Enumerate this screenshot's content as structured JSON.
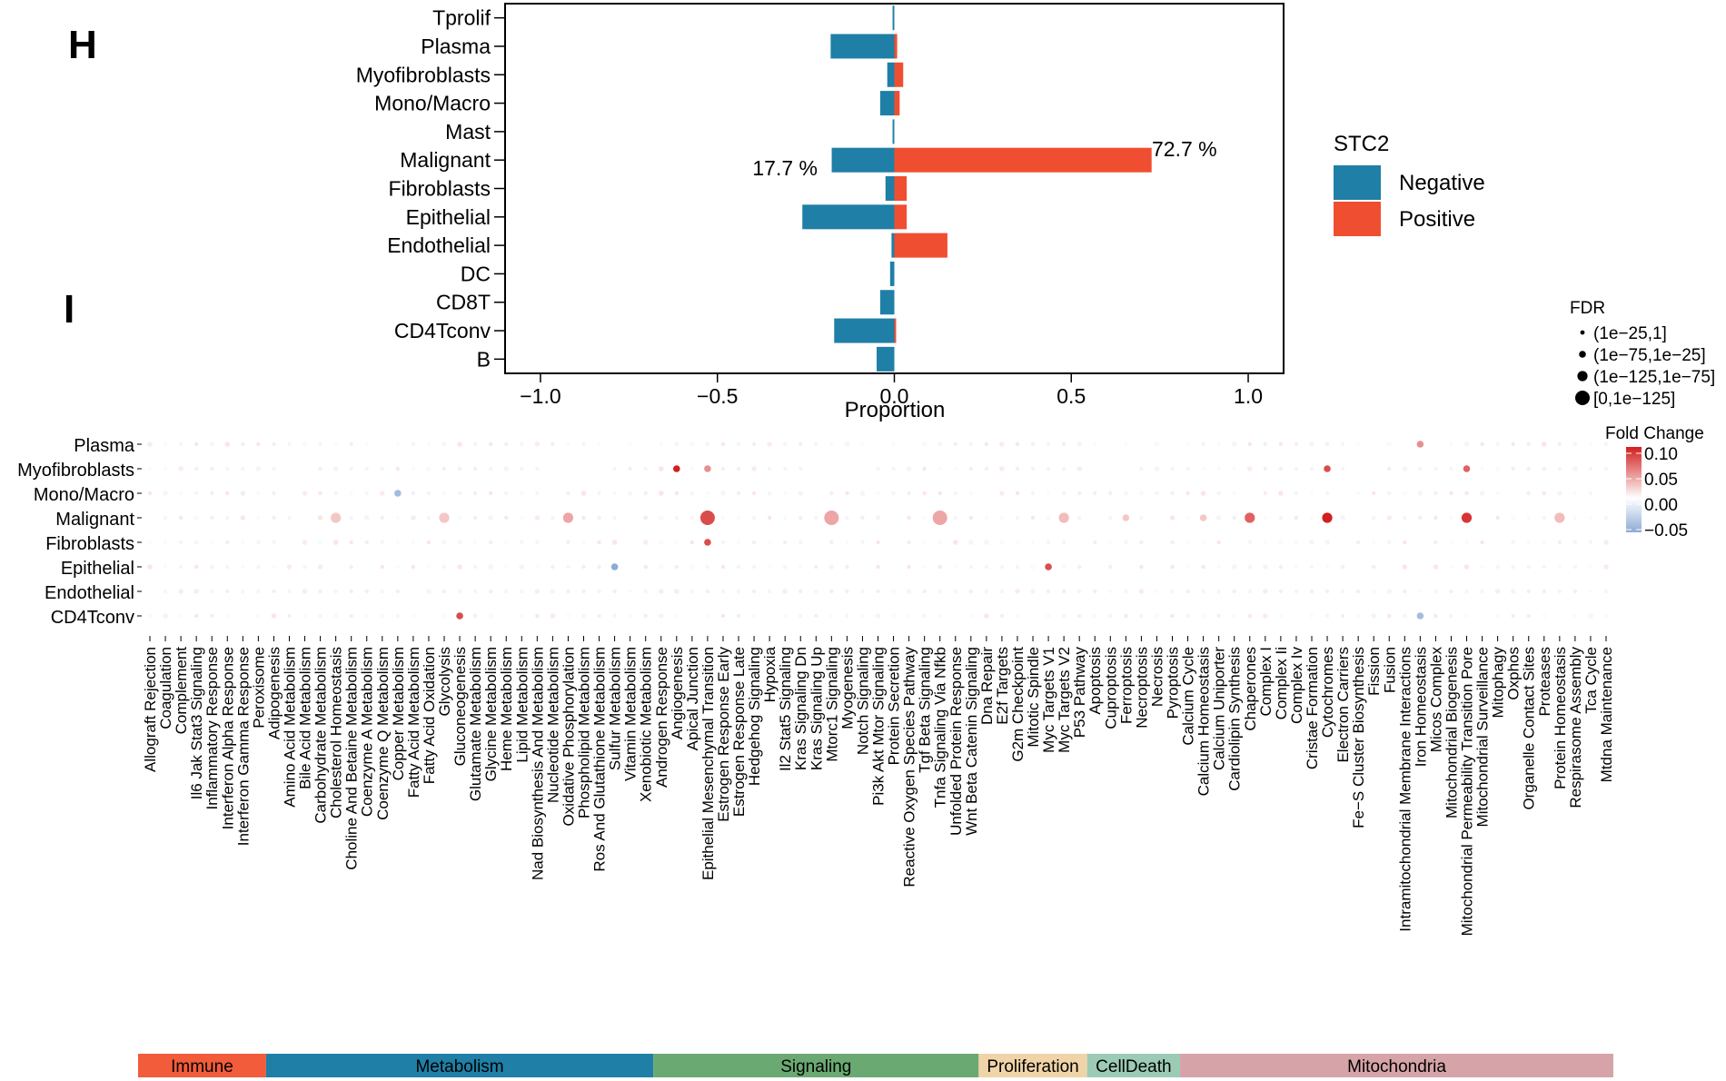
{
  "panel_labels": {
    "h": "H",
    "i": "I"
  },
  "colors": {
    "negative": "#1f7fa6",
    "positive": "#f04e30",
    "fc_high": "#d21f1f",
    "fc_low": "#8eaad6"
  },
  "chart_data": [
    {
      "type": "bar",
      "orientation": "horizontal",
      "panel": "H",
      "categories": [
        "Tprolif",
        "Plasma",
        "Myofibroblasts",
        "Mono/Macro",
        "Mast",
        "Malignant",
        "Fibroblasts",
        "Epithelial",
        "Endothelial",
        "DC",
        "CD8T",
        "CD4Tconv",
        "B"
      ],
      "series": [
        {
          "name": "Negative",
          "values": [
            -0.005,
            -0.18,
            -0.02,
            -0.04,
            -0.005,
            -0.177,
            -0.025,
            -0.26,
            -0.008,
            -0.012,
            -0.04,
            -0.17,
            -0.05
          ]
        },
        {
          "name": "Positive",
          "values": [
            0.0,
            0.008,
            0.025,
            0.015,
            0.0,
            0.727,
            0.035,
            0.035,
            0.15,
            0.0,
            0.0,
            0.005,
            0.0
          ]
        }
      ],
      "xlabel": "Proportion",
      "xlim": [
        -1.1,
        1.1
      ],
      "xticks": [
        "−1.0",
        "−0.5",
        "0.0",
        "0.5",
        "1.0"
      ],
      "annotations": [
        "17.7 %",
        "72.7 %"
      ],
      "legend": {
        "title": "STC2",
        "items": [
          "Negative",
          "Positive"
        ],
        "position": "right"
      }
    },
    {
      "type": "scatter",
      "subtype": "dot-plot",
      "panel": "I",
      "rows": [
        "Plasma",
        "Myofibroblasts",
        "Mono/Macro",
        "Malignant",
        "Fibroblasts",
        "Epithelial",
        "Endothelial",
        "CD4Tconv"
      ],
      "pathways": [
        "Allograft Rejection",
        "Coagulation",
        "Complement",
        "Il6 Jak Stat3 Signaling",
        "Inflammatory Response",
        "Interferon Alpha Response",
        "Interferon Gamma Response",
        "Peroxisome",
        "Adipogenesis",
        "Amino Acid Metabolism",
        "Bile Acid Metabolism",
        "Carbohydrate Metabolism",
        "Cholesterol Homeostasis",
        "Choline And Betaine Metabolism",
        "Coenzyme A Metabolism",
        "Coenzyme Q Metabolism",
        "Copper Metabolism",
        "Fatty Acid Metabolism",
        "Fatty Acid Oxidation",
        "Glycolysis",
        "Gluconeogenesis",
        "Glutamate Metabolism",
        "Glycine Metabolism",
        "Heme Metabolism",
        "Lipid Metabolism",
        "Nad Biosynthesis And Metabolism",
        "Nucleotide Metabolism",
        "Oxidative Phosphorylation",
        "Phospholipid Metabolism",
        "Ros And Glutathione Metabolism",
        "Sulfur Metabolism",
        "Vitamin Metabolism",
        "Xenobiotic Metabolism",
        "Androgen Response",
        "Angiogenesis",
        "Apical Junction",
        "Epithelial Mesenchymal Transition",
        "Estrogen Response Early",
        "Estrogen Response Late",
        "Hedgehog Signaling",
        "Hypoxia",
        "Il2 Stat5 Signaling",
        "Kras Signaling Dn",
        "Kras Signaling Up",
        "Mtorc1 Signaling",
        "Myogenesis",
        "Notch Signaling",
        "Pi3k Akt Mtor Signaling",
        "Protein Secretion",
        "Reactive Oxygen Species Pathway",
        "Tgf Beta Signaling",
        "Tnfa Signaling Via Nfkb",
        "Unfolded Protein Response",
        "Wnt Beta Catenin Signaling",
        "Dna Repair",
        "E2f Targets",
        "G2m Checkpoint",
        "Mitotic Spindle",
        "Myc Targets V1",
        "Myc Targets V2",
        "P53 Pathway",
        "Apoptosis",
        "Cuproptosis",
        "Ferroptosis",
        "Necroptosis",
        "Necrosis",
        "Pyroptosis",
        "Calcium Cycle",
        "Calcium Homeostasis",
        "Calcium Uniporter",
        "Cardiolipin Synthesis",
        "Chaperones",
        "Complex I",
        "Complex Ii",
        "Complex Iv",
        "Cristae Formation",
        "Cytochromes",
        "Electron Carriers",
        "Fe−S Cluster Biosynthesis",
        "Fission",
        "Fusion",
        "Intramitochondrial Membrane Interactions",
        "Iron Homeostasis",
        "Micos Complex",
        "Mitochondrial Biogenesis",
        "Mitochondrial Permeability Transition Pore",
        "Mitochondrial Surveillance",
        "Mitophagy",
        "Oxphos",
        "Organelle Contact Sites",
        "Proteases",
        "Protein Homeostasis",
        "Respirasome Assembly",
        "Tca Cycle",
        "Mtdna Maintenance"
      ],
      "highlighted_pathway": "Epithelial Mesenchymal Transition",
      "points": [
        {
          "row": "Malignant",
          "pathway": "Epithelial Mesenchymal Transition",
          "fc": 0.08,
          "size": 4
        },
        {
          "row": "Malignant",
          "pathway": "Mtorc1 Signaling",
          "fc": 0.04,
          "size": 4
        },
        {
          "row": "Malignant",
          "pathway": "Tnfa Signaling Via Nfkb",
          "fc": 0.04,
          "size": 4
        },
        {
          "row": "Malignant",
          "pathway": "Chaperones",
          "fc": 0.07,
          "size": 3
        },
        {
          "row": "Malignant",
          "pathway": "Cytochromes",
          "fc": 0.1,
          "size": 3
        },
        {
          "row": "Malignant",
          "pathway": "Mitochondrial Permeability Transition Pore",
          "fc": 0.09,
          "size": 3
        },
        {
          "row": "Malignant",
          "pathway": "Glycolysis",
          "fc": 0.025,
          "size": 3
        },
        {
          "row": "Malignant",
          "pathway": "Cholesterol Homeostasis",
          "fc": 0.025,
          "size": 3
        },
        {
          "row": "Malignant",
          "pathway": "Oxidative Phosphorylation",
          "fc": 0.04,
          "size": 3
        },
        {
          "row": "Malignant",
          "pathway": "Myc Targets V2",
          "fc": 0.03,
          "size": 3
        },
        {
          "row": "Malignant",
          "pathway": "Protein Homeostasis",
          "fc": 0.03,
          "size": 3
        },
        {
          "row": "Malignant",
          "pathway": "Calcium Homeostasis",
          "fc": 0.025,
          "size": 2
        },
        {
          "row": "Malignant",
          "pathway": "Ferroptosis",
          "fc": 0.025,
          "size": 2
        },
        {
          "row": "Myofibroblasts",
          "pathway": "Angiogenesis",
          "fc": 0.1,
          "size": 2
        },
        {
          "row": "Myofibroblasts",
          "pathway": "Cytochromes",
          "fc": 0.08,
          "size": 2
        },
        {
          "row": "Myofibroblasts",
          "pathway": "Mitochondrial Permeability Transition Pore",
          "fc": 0.07,
          "size": 2
        },
        {
          "row": "Myofibroblasts",
          "pathway": "Epithelial Mesenchymal Transition",
          "fc": 0.05,
          "size": 2
        },
        {
          "row": "Fibroblasts",
          "pathway": "Epithelial Mesenchymal Transition",
          "fc": 0.08,
          "size": 2
        },
        {
          "row": "Epithelial",
          "pathway": "Myc Targets V1",
          "fc": 0.08,
          "size": 2
        },
        {
          "row": "Epithelial",
          "pathway": "Sulfur Metabolism",
          "fc": -0.05,
          "size": 2
        },
        {
          "row": "CD4Tconv",
          "pathway": "Gluconeogenesis",
          "fc": 0.08,
          "size": 2
        },
        {
          "row": "CD4Tconv",
          "pathway": "Iron Homeostasis",
          "fc": -0.04,
          "size": 2
        },
        {
          "row": "Mono/Macro",
          "pathway": "Copper Metabolism",
          "fc": -0.04,
          "size": 2
        },
        {
          "row": "Plasma",
          "pathway": "Iron Homeostasis",
          "fc": 0.05,
          "size": 2
        }
      ],
      "legend_fdr": {
        "title": "FDR",
        "items": [
          "(1e−25,1]",
          "(1e−75,1e−25]",
          "(1e−125,1e−75]",
          "[0,1e−125]"
        ]
      },
      "legend_fc": {
        "title": "Fold Change",
        "ticks": [
          "0.10",
          "0.05",
          "0.00",
          "−0.05"
        ]
      },
      "groups": [
        {
          "name": "Immune",
          "start": 0,
          "end": 7,
          "color": "#f25c3a"
        },
        {
          "name": "Metabolism",
          "start": 8,
          "end": 32,
          "color": "#1f7fa6"
        },
        {
          "name": "Signaling",
          "start": 33,
          "end": 53,
          "color": "#6aaa72"
        },
        {
          "name": "Proliferation",
          "start": 54,
          "end": 60,
          "color": "#f0d4a8"
        },
        {
          "name": "CellDeath",
          "start": 61,
          "end": 66,
          "color": "#9ccbb5"
        },
        {
          "name": "Mitochondria",
          "start": 67,
          "end": 94,
          "color": "#d6a4a8"
        }
      ]
    }
  ]
}
